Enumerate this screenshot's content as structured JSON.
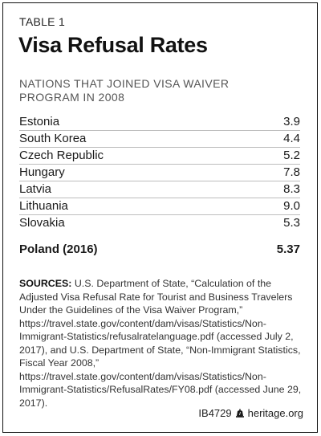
{
  "header": {
    "table_label": "TABLE 1",
    "title": "Visa Refusal Rates",
    "subtitle": "NATIONS THAT JOINED VISA WAIVER PROGRAM IN 2008"
  },
  "rows": [
    {
      "country": "Estonia",
      "value": "3.9"
    },
    {
      "country": "South Korea",
      "value": "4.4"
    },
    {
      "country": "Czech Republic",
      "value": "5.2"
    },
    {
      "country": "Hungary",
      "value": "7.8"
    },
    {
      "country": "Latvia",
      "value": "8.3"
    },
    {
      "country": "Lithuania",
      "value": "9.0"
    },
    {
      "country": "Slovakia",
      "value": "5.3"
    }
  ],
  "summary": {
    "country": "Poland (2016)",
    "value": "5.37"
  },
  "sources": {
    "label": "SOURCES:",
    "text": "U.S. Department of State, “Calculation of the Adjusted Visa Refusal Rate for Tourist and Business Travelers Under the Guidelines of the Visa Waiver Program,” https://travel.state.gov/content/dam/visas/Statistics/Non-Immigrant-Statistics/refusalratelanguage.pdf (accessed July 2, 2017), and U.S. Department of State, “Non-Immigrant Statistics, Fiscal Year 2008,” https://travel.state.gov/content/dam/visas/Statistics/Non-Immigrant-Statistics/RefusalRates/FY08.pdf (accessed June 29, 2017)."
  },
  "footer": {
    "id": "IB4729",
    "site": "heritage.org",
    "icon": "liberty-bell-icon"
  }
}
